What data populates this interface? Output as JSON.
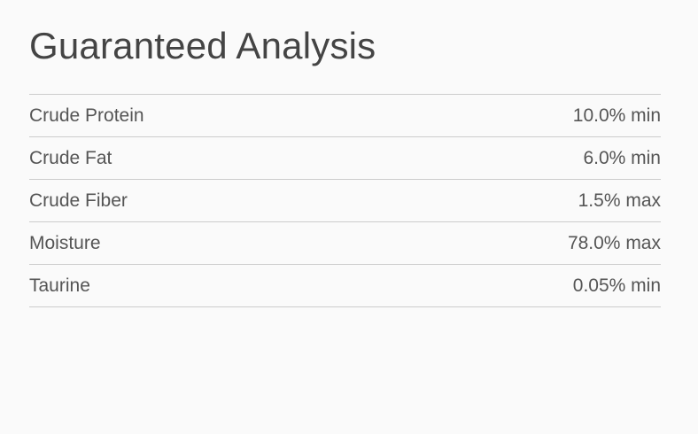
{
  "title": "Guaranteed Analysis",
  "rows": [
    {
      "label": "Crude Protein",
      "value": "10.0% min"
    },
    {
      "label": "Crude Fat",
      "value": "6.0% min"
    },
    {
      "label": "Crude Fiber",
      "value": "1.5% max"
    },
    {
      "label": "Moisture",
      "value": "78.0% max"
    },
    {
      "label": "Taurine",
      "value": "0.05% min"
    }
  ]
}
